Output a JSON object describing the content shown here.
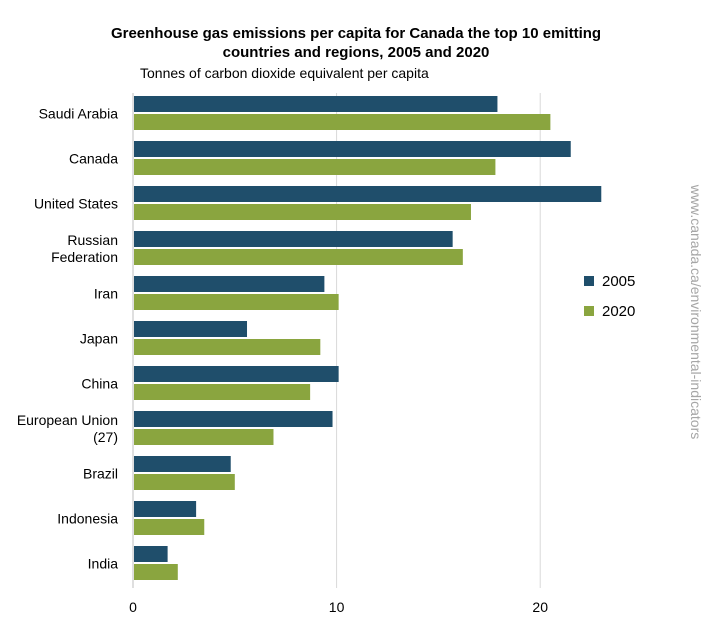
{
  "chart_data": {
    "type": "bar",
    "orientation": "horizontal",
    "title_line1": "Greenhouse gas emissions per capita for Canada the top 10 emitting",
    "title_line2": "countries and regions, 2005 and 2020",
    "ylabel": "Tonnes  of carbon dioxide equivalent  per capita",
    "categories": [
      [
        "Saudi Arabia"
      ],
      [
        "Canada"
      ],
      [
        "United States"
      ],
      [
        "Russian",
        "Federation"
      ],
      [
        "Iran"
      ],
      [
        "Japan"
      ],
      [
        "China"
      ],
      [
        "European Union",
        "(27)"
      ],
      [
        "Brazil"
      ],
      [
        "Indonesia"
      ],
      [
        "India"
      ]
    ],
    "series": [
      {
        "name": "2005",
        "color": "#1f4e6b",
        "values": [
          17.9,
          21.5,
          23.0,
          15.7,
          9.4,
          5.6,
          10.1,
          9.8,
          4.8,
          3.1,
          1.7
        ]
      },
      {
        "name": "2020",
        "color": "#8aa53f",
        "values": [
          20.5,
          17.8,
          16.6,
          16.2,
          10.1,
          9.2,
          8.7,
          6.9,
          5.0,
          3.5,
          2.2
        ]
      }
    ],
    "xlim": [
      0,
      25
    ],
    "xticks": [
      "0",
      "10",
      "20"
    ],
    "xtick_values": [
      0,
      10,
      20
    ],
    "gridlines": true,
    "legend": "right"
  },
  "source_text": "www.canada.ca/environmental-indicators"
}
